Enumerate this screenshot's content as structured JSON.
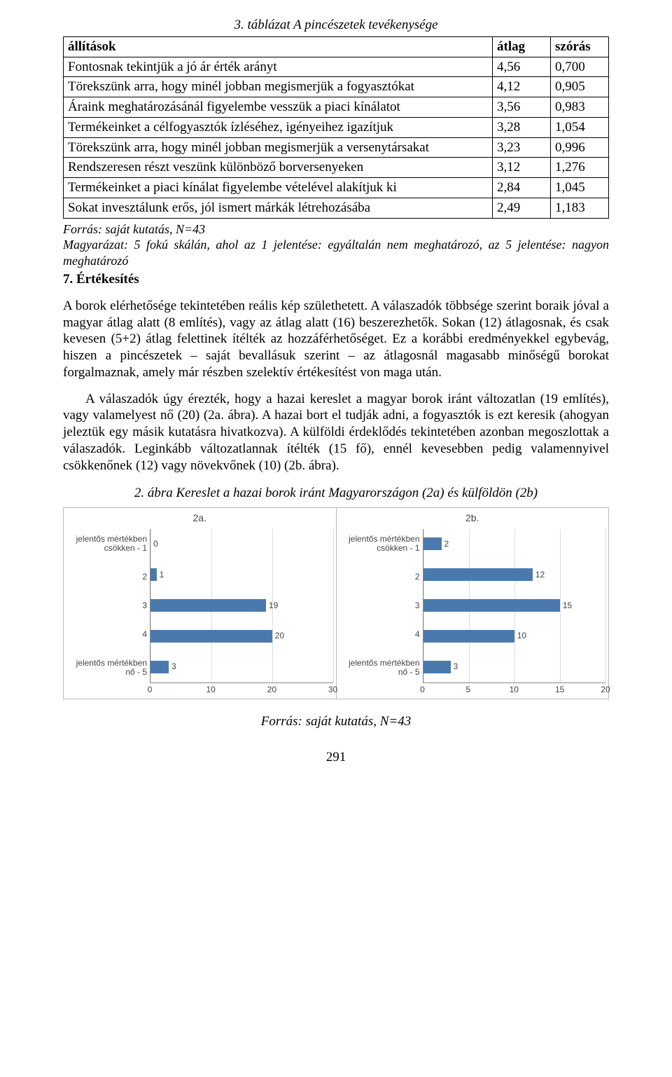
{
  "table": {
    "caption": "3. táblázat A pincészetek tevékenysége",
    "headers": [
      "állítások",
      "átlag",
      "szórás"
    ],
    "rows": [
      [
        "Fontosnak tekintjük a jó ár érték arányt",
        "4,56",
        "0,700"
      ],
      [
        "Törekszünk arra, hogy minél jobban megismerjük a fogyasztókat",
        "4,12",
        "0,905"
      ],
      [
        "Áraink meghatározásánál figyelembe vesszük a piaci kínálatot",
        "3,56",
        "0,983"
      ],
      [
        "Termékeinket a célfogyasztók ízléséhez, igényeihez igazítjuk",
        "3,28",
        "1,054"
      ],
      [
        "Törekszünk arra, hogy minél jobban megismerjük a versenytársakat",
        "3,23",
        "0,996"
      ],
      [
        "Rendszeresen részt veszünk különböző borversenyeken",
        "3,12",
        "1,276"
      ],
      [
        "Termékeinket a piaci kínálat figyelembe vételével alakítjuk ki",
        "2,84",
        "1,045"
      ],
      [
        "Sokat invesztálunk erős, jól ismert márkák létrehozásába",
        "2,49",
        "1,183"
      ]
    ],
    "source": "Forrás: saját kutatás, N=43",
    "explain": "Magyarázat: 5 fokú skálán, ahol az 1 jelentése: egyáltalán nem meghatározó, az 5 jelentése: nagyon meghatározó"
  },
  "section_heading": "7. Értékesítés",
  "para1": "A borok elérhetősége tekintetében reális kép születhetett. A válaszadók többsége szerint boraik jóval a magyar átlag alatt (8 említés), vagy az átlag alatt (16) beszerezhetők. Sokan (12) átlagosnak, és csak kevesen (5+2) átlag felettinek ítélték az hozzáférhetőséget. Ez a korábbi eredményekkel egybevág, hiszen a pincészetek – saját bevallásuk szerint – az átlagosnál magasabb minőségű borokat forgalmaznak, amely már részben szelektív értékesítést von maga után.",
  "para2": "A válaszadók úgy érezték, hogy a hazai kereslet a magyar borok iránt változatlan (19 említés), vagy valamelyest nő (20) (2a. ábra). A hazai bort el tudják adni, a fogyasztók is ezt keresik (ahogyan jeleztük egy másik kutatásra hivatkozva). A külföldi érdeklődés tekintetében azonban megoszlottak a válaszadók. Leginkább változatlannak ítélték (15 fő), ennél kevesebben pedig valamennyivel csökkenőnek (12) vagy növekvőnek (10) (2b. ábra).",
  "figure_caption": "2. ábra Kereslet a hazai borok iránt Magyarországon (2a) és külföldön (2b)",
  "charts": {
    "bar_color": "#4a79ad",
    "grid_color": "#dddddd",
    "axis_color": "#888888",
    "text_color": "#444444",
    "font": "Arial",
    "label_fontsize": 12,
    "title_fontsize": 14,
    "y_categories": [
      "jelentős mértékben csökken - 1",
      "2",
      "3",
      "4",
      "jelentős mértékben nő - 5"
    ],
    "a": {
      "title": "2a.",
      "values": [
        0,
        1,
        19,
        20,
        3
      ],
      "xmax": 30,
      "xticks": [
        0,
        10,
        20,
        30
      ]
    },
    "b": {
      "title": "2b.",
      "values": [
        2,
        12,
        15,
        10,
        3
      ],
      "xmax": 20,
      "xticks": [
        0,
        5,
        10,
        15,
        20
      ]
    }
  },
  "figure_source": "Forrás: saját kutatás, N=43",
  "page_number": "291"
}
